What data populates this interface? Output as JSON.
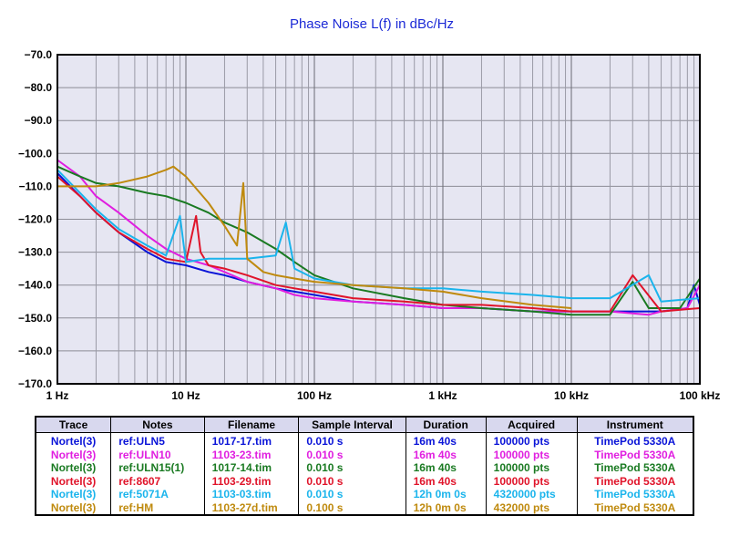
{
  "chart_data": {
    "type": "line",
    "title": "Phase Noise L(f) in dBc/Hz",
    "xscale": "log",
    "xlim": [
      1,
      100000
    ],
    "ylim": [
      -170,
      -70
    ],
    "grid": true,
    "x_ticks": [
      {
        "value": 1,
        "label": "1 Hz"
      },
      {
        "value": 10,
        "label": "10 Hz"
      },
      {
        "value": 100,
        "label": "100 Hz"
      },
      {
        "value": 1000,
        "label": "1 kHz"
      },
      {
        "value": 10000,
        "label": "10 kHz"
      },
      {
        "value": 100000,
        "label": "100 kHz"
      }
    ],
    "y_ticks": [
      {
        "value": -70,
        "label": "−70.0"
      },
      {
        "value": -80,
        "label": "−80.0"
      },
      {
        "value": -90,
        "label": "−90.0"
      },
      {
        "value": -100,
        "label": "−100.0"
      },
      {
        "value": -110,
        "label": "−110.0"
      },
      {
        "value": -120,
        "label": "−120.0"
      },
      {
        "value": -130,
        "label": "−130.0"
      },
      {
        "value": -140,
        "label": "−140.0"
      },
      {
        "value": -150,
        "label": "−150.0"
      },
      {
        "value": -160,
        "label": "−160.0"
      },
      {
        "value": -170,
        "label": "−170.0"
      }
    ],
    "series": [
      {
        "color": "#0a14d8",
        "x": [
          1,
          1.5,
          2,
          3,
          5,
          7,
          10,
          15,
          20,
          30,
          50,
          70,
          100,
          200,
          500,
          1000,
          2000,
          5000,
          10000,
          20000,
          50000,
          80000,
          90000,
          100000
        ],
        "y": [
          -106,
          -113,
          -118,
          -124,
          -130,
          -133,
          -134,
          -136,
          -137,
          -139,
          -141,
          -142,
          -143,
          -145,
          -146,
          -147,
          -147,
          -148,
          -148,
          -148,
          -148,
          -147,
          -140,
          -146
        ]
      },
      {
        "color": "#e01ee0",
        "x": [
          1,
          1.5,
          2,
          3,
          5,
          7,
          10,
          15,
          20,
          30,
          50,
          70,
          100,
          200,
          500,
          1000,
          2000,
          5000,
          10000,
          20000,
          40000,
          50000,
          80000,
          100000
        ],
        "y": [
          -102,
          -107,
          -113,
          -118,
          -125,
          -129,
          -132,
          -134,
          -136,
          -139,
          -141,
          -143,
          -144,
          -145,
          -146,
          -147,
          -147,
          -148,
          -148,
          -148,
          -149,
          -148,
          -147,
          -140
        ]
      },
      {
        "color": "#1a7a22",
        "x": [
          1,
          1.5,
          2,
          3,
          5,
          7,
          10,
          15,
          20,
          30,
          50,
          70,
          100,
          200,
          500,
          1000,
          2000,
          5000,
          10000,
          20000,
          30000,
          40000,
          70000,
          100000
        ],
        "y": [
          -104,
          -107,
          -109,
          -110,
          -112,
          -113,
          -115,
          -118,
          -121,
          -124,
          -129,
          -133,
          -137,
          -141,
          -144,
          -146,
          -147,
          -148,
          -149,
          -149,
          -139,
          -147,
          -147,
          -138
        ]
      },
      {
        "color": "#e0142a",
        "x": [
          1,
          1.5,
          2,
          3,
          5,
          7,
          10,
          12,
          13,
          15,
          20,
          30,
          50,
          70,
          100,
          200,
          500,
          1000,
          2000,
          5000,
          10000,
          20000,
          30000,
          50000,
          100000
        ],
        "y": [
          -107,
          -113,
          -118,
          -124,
          -129,
          -132,
          -133,
          -119,
          -130,
          -134,
          -135,
          -137,
          -140,
          -141,
          -142,
          -144,
          -145,
          -146,
          -146,
          -147,
          -148,
          -148,
          -137,
          -148,
          -147
        ]
      },
      {
        "color": "#1ab4ec",
        "x": [
          1,
          1.5,
          2,
          3,
          5,
          7,
          9,
          10,
          15,
          20,
          30,
          50,
          60,
          70,
          100,
          200,
          500,
          1000,
          2000,
          5000,
          10000,
          20000,
          40000,
          50000,
          100000
        ],
        "y": [
          -105,
          -112,
          -117,
          -123,
          -128,
          -131,
          -119,
          -133,
          -132,
          -132,
          -132,
          -131,
          -121,
          -135,
          -138,
          -140,
          -141,
          -141,
          -142,
          -143,
          -144,
          -144,
          -137,
          -145,
          -144
        ]
      },
      {
        "color": "#bf8a0e",
        "x": [
          1,
          2,
          3,
          5,
          7,
          8,
          10,
          15,
          20,
          25,
          28,
          30,
          40,
          50,
          70,
          100,
          200,
          500,
          1000,
          2000,
          5000,
          10000
        ],
        "y": [
          -110,
          -110,
          -109,
          -107,
          -105,
          -104,
          -107,
          -115,
          -122,
          -128,
          -109,
          -132,
          -136,
          -137,
          -138,
          -139,
          -140,
          -141,
          -142,
          -144,
          -146,
          -147
        ]
      }
    ]
  },
  "legend": {
    "headers": [
      "Trace",
      "Notes",
      "Filename",
      "Sample Interval",
      "Duration",
      "Acquired",
      "Instrument"
    ],
    "rows": [
      {
        "color": "#0a14d8",
        "cells": [
          "Nortel(3)",
          "ref:ULN5",
          "1017-17.tim",
          "0.010 s",
          "16m 40s",
          "100000 pts",
          "TimePod 5330A"
        ]
      },
      {
        "color": "#e01ee0",
        "cells": [
          "Nortel(3)",
          "ref:ULN10",
          "1103-23.tim",
          "0.010 s",
          "16m 40s",
          "100000 pts",
          "TimePod 5330A"
        ]
      },
      {
        "color": "#1a7a22",
        "cells": [
          "Nortel(3)",
          "ref:ULN15(1)",
          "1017-14.tim",
          "0.010 s",
          "16m 40s",
          "100000 pts",
          "TimePod 5330A"
        ]
      },
      {
        "color": "#e0142a",
        "cells": [
          "Nortel(3)",
          "ref:8607",
          "1103-29.tim",
          "0.010 s",
          "16m 40s",
          "100000 pts",
          "TimePod 5330A"
        ]
      },
      {
        "color": "#1ab4ec",
        "cells": [
          "Nortel(3)",
          "ref:5071A",
          "1103-03.tim",
          "0.010 s",
          "12h 0m 0s",
          "4320000 pts",
          "TimePod 5330A"
        ]
      },
      {
        "color": "#bf8a0e",
        "cells": [
          "Nortel(3)",
          "ref:HM",
          "1103-27d.tim",
          "0.100 s",
          "12h 0m 0s",
          "432000 pts",
          "TimePod 5330A"
        ]
      }
    ]
  }
}
